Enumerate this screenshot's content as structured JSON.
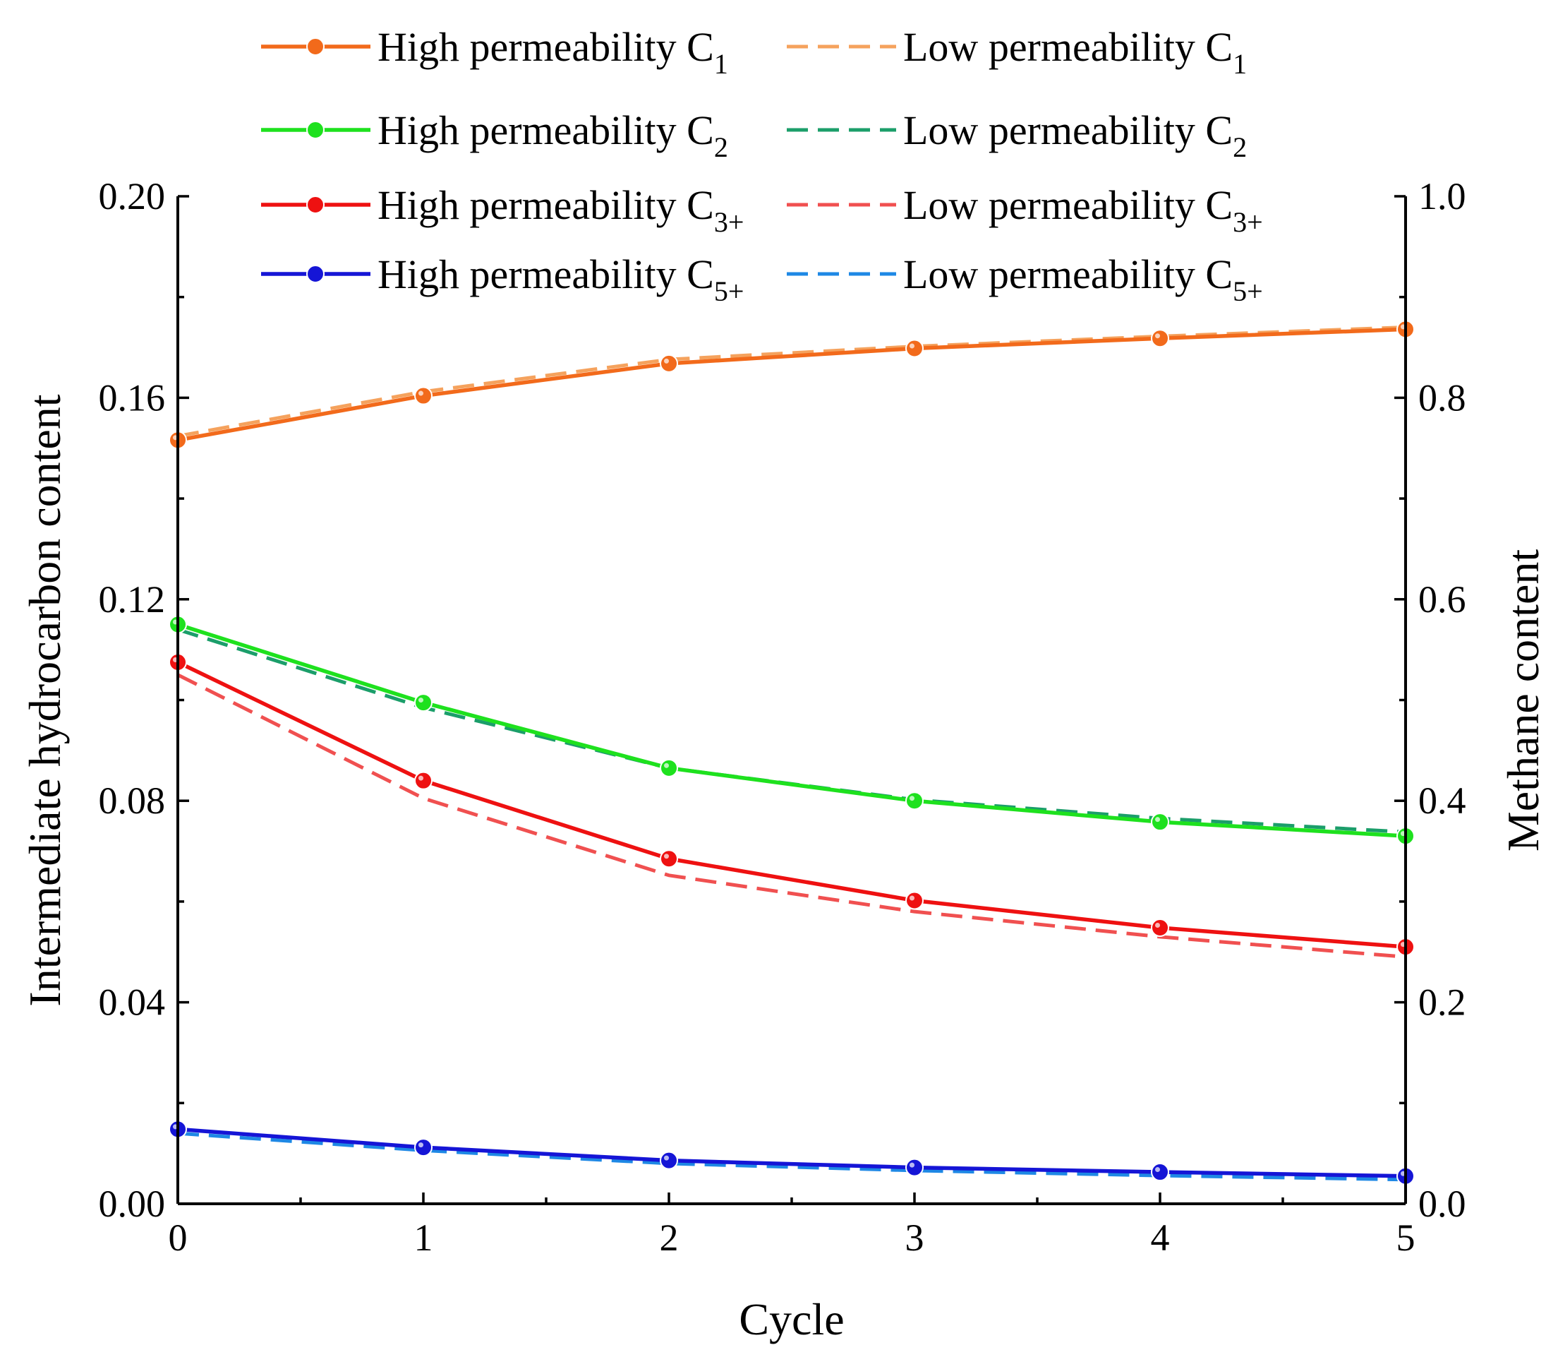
{
  "chart_data": {
    "type": "line",
    "xlabel": "Cycle",
    "ylabel_left": "Intermediate hydrocarbon content",
    "ylabel_right": "Methane content",
    "x": [
      0,
      1,
      2,
      3,
      4,
      5
    ],
    "xlim": [
      0,
      5
    ],
    "ylim_left": [
      0,
      0.2
    ],
    "ylim_right": [
      0,
      1.0
    ],
    "x_ticks": [
      "0",
      "1",
      "2",
      "3",
      "4",
      "5"
    ],
    "y_left_ticks": [
      "0.00",
      "0.04",
      "0.08",
      "0.12",
      "0.16",
      "0.20"
    ],
    "y_right_ticks": [
      "0.0",
      "0.2",
      "0.4",
      "0.6",
      "0.8",
      "1.0"
    ],
    "legend_position": "top",
    "series": [
      {
        "name": "High permeability C1",
        "prefix": "High permeability C",
        "sub": "1",
        "axis": "right",
        "style": "solid",
        "marker": true,
        "color": "#F26A1B",
        "values": [
          0.758,
          0.802,
          0.834,
          0.849,
          0.859,
          0.868
        ]
      },
      {
        "name": "Low permeability C1",
        "prefix": "Low permeability C",
        "sub": "1",
        "axis": "right",
        "style": "dashed",
        "marker": false,
        "color": "#F5A25D",
        "values": [
          0.762,
          0.806,
          0.838,
          0.851,
          0.861,
          0.87
        ]
      },
      {
        "name": "High permeability C2",
        "prefix": "High permeability C",
        "sub": "2",
        "axis": "left",
        "style": "solid",
        "marker": true,
        "color": "#1EE11E",
        "values": [
          0.115,
          0.0995,
          0.0865,
          0.08,
          0.0758,
          0.073
        ]
      },
      {
        "name": "Low permeability C2",
        "prefix": "Low permeability C",
        "sub": "2",
        "axis": "left",
        "style": "dashed",
        "marker": false,
        "color": "#1B9E6A",
        "values": [
          0.114,
          0.0985,
          0.0865,
          0.0802,
          0.0765,
          0.0738
        ]
      },
      {
        "name": "High permeability C3+",
        "prefix": "High permeability C",
        "sub": "3+",
        "axis": "left",
        "style": "solid",
        "marker": true,
        "color": "#EE1111",
        "values": [
          0.1075,
          0.084,
          0.0685,
          0.0602,
          0.0548,
          0.051
        ]
      },
      {
        "name": "Low permeability C3+",
        "prefix": "Low permeability C",
        "sub": "3+",
        "axis": "left",
        "style": "dashed",
        "marker": false,
        "color": "#F05050",
        "values": [
          0.105,
          0.0805,
          0.0652,
          0.058,
          0.053,
          0.049
        ]
      },
      {
        "name": "High permeability C5+",
        "prefix": "High permeability C",
        "sub": "5+",
        "axis": "left",
        "style": "solid",
        "marker": true,
        "color": "#1515D6",
        "values": [
          0.0148,
          0.0112,
          0.0086,
          0.0072,
          0.0063,
          0.0055
        ]
      },
      {
        "name": "Low permeability C5+",
        "prefix": "Low permeability C",
        "sub": "5+",
        "axis": "left",
        "style": "dashed",
        "marker": false,
        "color": "#1E88E5",
        "values": [
          0.014,
          0.0106,
          0.008,
          0.0066,
          0.0056,
          0.0048
        ]
      }
    ]
  }
}
